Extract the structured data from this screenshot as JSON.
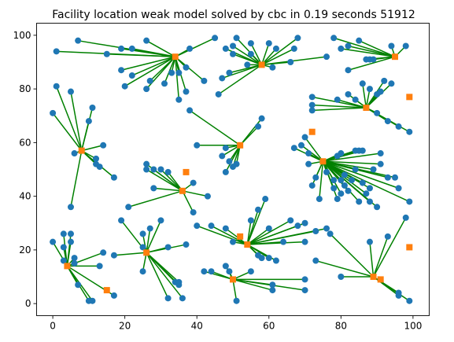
{
  "chart_data": {
    "type": "scatter",
    "title": "Facility location weak model solved by cbc in 0.19 seconds 51912",
    "xlabel": "",
    "ylabel": "",
    "xlim": [
      -4.5,
      104.5
    ],
    "ylim": [
      -4.5,
      104.5
    ],
    "xticks": [
      0,
      20,
      40,
      60,
      80,
      100
    ],
    "yticks": [
      0,
      20,
      40,
      60,
      80,
      100
    ],
    "grid": false,
    "legend": "none",
    "colors": {
      "customers": "#1f77b4",
      "facilities": "#ff7f0e",
      "assignments": "#008000"
    },
    "facilities": [
      {
        "x": 34,
        "y": 92,
        "open": true
      },
      {
        "x": 58,
        "y": 89,
        "open": true
      },
      {
        "x": 95,
        "y": 92,
        "open": true
      },
      {
        "x": 87,
        "y": 73,
        "open": true
      },
      {
        "x": 99,
        "y": 77,
        "open": false
      },
      {
        "x": 8,
        "y": 57,
        "open": true
      },
      {
        "x": 52,
        "y": 59,
        "open": true
      },
      {
        "x": 72,
        "y": 64,
        "open": false
      },
      {
        "x": 75,
        "y": 53,
        "open": true
      },
      {
        "x": 36,
        "y": 42,
        "open": true
      },
      {
        "x": 37,
        "y": 49,
        "open": false
      },
      {
        "x": 26,
        "y": 19,
        "open": true
      },
      {
        "x": 54,
        "y": 22,
        "open": true
      },
      {
        "x": 52,
        "y": 25,
        "open": false
      },
      {
        "x": 4,
        "y": 14,
        "open": true
      },
      {
        "x": 15,
        "y": 5,
        "open": false
      },
      {
        "x": 50,
        "y": 9,
        "open": true
      },
      {
        "x": 89,
        "y": 10,
        "open": true
      },
      {
        "x": 91,
        "y": 9,
        "open": false
      },
      {
        "x": 99,
        "y": 21,
        "open": false
      }
    ],
    "customers": [
      {
        "x": 1,
        "y": 94,
        "f": 0
      },
      {
        "x": 7,
        "y": 98,
        "f": 0
      },
      {
        "x": 15,
        "y": 93,
        "f": 0
      },
      {
        "x": 19,
        "y": 95,
        "f": 0
      },
      {
        "x": 22,
        "y": 95,
        "f": 0
      },
      {
        "x": 26,
        "y": 98,
        "f": 0
      },
      {
        "x": 19,
        "y": 87,
        "f": 0
      },
      {
        "x": 22,
        "y": 85,
        "f": 0
      },
      {
        "x": 20,
        "y": 81,
        "f": 0
      },
      {
        "x": 26,
        "y": 80,
        "f": 0
      },
      {
        "x": 27,
        "y": 83,
        "f": 0
      },
      {
        "x": 31,
        "y": 82,
        "f": 0
      },
      {
        "x": 33,
        "y": 86,
        "f": 0
      },
      {
        "x": 35,
        "y": 86,
        "f": 0
      },
      {
        "x": 37,
        "y": 88,
        "f": 0
      },
      {
        "x": 37,
        "y": 79,
        "f": 0
      },
      {
        "x": 35,
        "y": 76,
        "f": 0
      },
      {
        "x": 38,
        "y": 95,
        "f": 0
      },
      {
        "x": 42,
        "y": 83,
        "f": 0
      },
      {
        "x": 45,
        "y": 99,
        "f": 0
      },
      {
        "x": 48,
        "y": 95,
        "f": 1
      },
      {
        "x": 50,
        "y": 96,
        "f": 1
      },
      {
        "x": 50,
        "y": 93,
        "f": 1
      },
      {
        "x": 51,
        "y": 99,
        "f": 1
      },
      {
        "x": 55,
        "y": 97,
        "f": 1
      },
      {
        "x": 55,
        "y": 93,
        "f": 1
      },
      {
        "x": 54,
        "y": 89,
        "f": 1
      },
      {
        "x": 49,
        "y": 86,
        "f": 1
      },
      {
        "x": 47,
        "y": 84,
        "f": 1
      },
      {
        "x": 46,
        "y": 78,
        "f": 1
      },
      {
        "x": 60,
        "y": 97,
        "f": 1
      },
      {
        "x": 62,
        "y": 95,
        "f": 1
      },
      {
        "x": 67,
        "y": 95,
        "f": 1
      },
      {
        "x": 68,
        "y": 99,
        "f": 1
      },
      {
        "x": 66,
        "y": 90,
        "f": 1
      },
      {
        "x": 61,
        "y": 88,
        "f": 1
      },
      {
        "x": 76,
        "y": 92,
        "f": 1
      },
      {
        "x": 78,
        "y": 99,
        "f": 2
      },
      {
        "x": 80,
        "y": 95,
        "f": 2
      },
      {
        "x": 82,
        "y": 96,
        "f": 2
      },
      {
        "x": 85,
        "y": 98,
        "f": 2
      },
      {
        "x": 87,
        "y": 91,
        "f": 2
      },
      {
        "x": 88,
        "y": 91,
        "f": 2
      },
      {
        "x": 89,
        "y": 91,
        "f": 2
      },
      {
        "x": 94,
        "y": 96,
        "f": 2
      },
      {
        "x": 82,
        "y": 87,
        "f": 2
      },
      {
        "x": 98,
        "y": 96,
        "f": 2
      },
      {
        "x": 72,
        "y": 74,
        "f": 3
      },
      {
        "x": 72,
        "y": 72,
        "f": 3
      },
      {
        "x": 72,
        "y": 77,
        "f": 3
      },
      {
        "x": 79,
        "y": 76,
        "f": 3
      },
      {
        "x": 82,
        "y": 78,
        "f": 3
      },
      {
        "x": 84,
        "y": 76,
        "f": 3
      },
      {
        "x": 86,
        "y": 82,
        "f": 3
      },
      {
        "x": 88,
        "y": 80,
        "f": 3
      },
      {
        "x": 90,
        "y": 78,
        "f": 3
      },
      {
        "x": 91,
        "y": 79,
        "f": 3
      },
      {
        "x": 92,
        "y": 83,
        "f": 3
      },
      {
        "x": 94,
        "y": 82,
        "f": 3
      },
      {
        "x": 90,
        "y": 71,
        "f": 3
      },
      {
        "x": 93,
        "y": 68,
        "f": 3
      },
      {
        "x": 96,
        "y": 66,
        "f": 3
      },
      {
        "x": 99,
        "y": 64,
        "f": 3
      },
      {
        "x": 1,
        "y": 81,
        "f": 5
      },
      {
        "x": 0,
        "y": 71,
        "f": 5
      },
      {
        "x": 5,
        "y": 79,
        "f": 5
      },
      {
        "x": 10,
        "y": 68,
        "f": 5
      },
      {
        "x": 11,
        "y": 73,
        "f": 5
      },
      {
        "x": 6,
        "y": 56,
        "f": 5
      },
      {
        "x": 14,
        "y": 59,
        "f": 5
      },
      {
        "x": 12,
        "y": 52,
        "f": 5
      },
      {
        "x": 12,
        "y": 54,
        "f": 5
      },
      {
        "x": 13,
        "y": 51,
        "f": 5
      },
      {
        "x": 17,
        "y": 47,
        "f": 5
      },
      {
        "x": 5,
        "y": 36,
        "f": 5
      },
      {
        "x": 38,
        "y": 72,
        "f": 6
      },
      {
        "x": 40,
        "y": 59,
        "f": 6
      },
      {
        "x": 47,
        "y": 55,
        "f": 6
      },
      {
        "x": 48,
        "y": 58,
        "f": 6
      },
      {
        "x": 49,
        "y": 53,
        "f": 6
      },
      {
        "x": 48,
        "y": 49,
        "f": 6
      },
      {
        "x": 50,
        "y": 51,
        "f": 6
      },
      {
        "x": 51,
        "y": 52,
        "f": 6
      },
      {
        "x": 57,
        "y": 66,
        "f": 6
      },
      {
        "x": 58,
        "y": 69,
        "f": 6
      },
      {
        "x": 67,
        "y": 58,
        "f": 8
      },
      {
        "x": 69,
        "y": 59,
        "f": 8
      },
      {
        "x": 71,
        "y": 56,
        "f": 8
      },
      {
        "x": 70,
        "y": 62,
        "f": 8
      },
      {
        "x": 71,
        "y": 52,
        "f": 8
      },
      {
        "x": 72,
        "y": 44,
        "f": 8
      },
      {
        "x": 73,
        "y": 47,
        "f": 8
      },
      {
        "x": 74,
        "y": 39,
        "f": 8
      },
      {
        "x": 76,
        "y": 49,
        "f": 8
      },
      {
        "x": 78,
        "y": 46,
        "f": 8
      },
      {
        "x": 78,
        "y": 43,
        "f": 8
      },
      {
        "x": 79,
        "y": 39,
        "f": 8
      },
      {
        "x": 80,
        "y": 41,
        "f": 8
      },
      {
        "x": 80,
        "y": 46,
        "f": 8
      },
      {
        "x": 81,
        "y": 44,
        "f": 8
      },
      {
        "x": 81,
        "y": 48,
        "f": 8
      },
      {
        "x": 82,
        "y": 42,
        "f": 8
      },
      {
        "x": 83,
        "y": 46,
        "f": 8
      },
      {
        "x": 84,
        "y": 50,
        "f": 8
      },
      {
        "x": 85,
        "y": 38,
        "f": 8
      },
      {
        "x": 86,
        "y": 45,
        "f": 8
      },
      {
        "x": 87,
        "y": 41,
        "f": 8
      },
      {
        "x": 88,
        "y": 43,
        "f": 8
      },
      {
        "x": 88,
        "y": 38,
        "f": 8
      },
      {
        "x": 89,
        "y": 50,
        "f": 8
      },
      {
        "x": 90,
        "y": 36,
        "f": 8
      },
      {
        "x": 91,
        "y": 52,
        "f": 8
      },
      {
        "x": 93,
        "y": 47,
        "f": 8
      },
      {
        "x": 96,
        "y": 43,
        "f": 8
      },
      {
        "x": 95,
        "y": 47,
        "f": 8
      },
      {
        "x": 91,
        "y": 56,
        "f": 8
      },
      {
        "x": 84,
        "y": 57,
        "f": 8
      },
      {
        "x": 85,
        "y": 57,
        "f": 8
      },
      {
        "x": 86,
        "y": 57,
        "f": 8
      },
      {
        "x": 80,
        "y": 56,
        "f": 8
      },
      {
        "x": 79,
        "y": 55,
        "f": 8
      },
      {
        "x": 99,
        "y": 38,
        "f": 8
      },
      {
        "x": 26,
        "y": 52,
        "f": 9
      },
      {
        "x": 26,
        "y": 50,
        "f": 9
      },
      {
        "x": 28,
        "y": 50,
        "f": 9
      },
      {
        "x": 30,
        "y": 50,
        "f": 9
      },
      {
        "x": 32,
        "y": 49,
        "f": 9
      },
      {
        "x": 28,
        "y": 43,
        "f": 9
      },
      {
        "x": 21,
        "y": 36,
        "f": 9
      },
      {
        "x": 39,
        "y": 45,
        "f": 9
      },
      {
        "x": 43,
        "y": 40,
        "f": 9
      },
      {
        "x": 39,
        "y": 34,
        "f": 9
      },
      {
        "x": 19,
        "y": 31,
        "f": 11
      },
      {
        "x": 17,
        "y": 18,
        "f": 11
      },
      {
        "x": 25,
        "y": 26,
        "f": 11
      },
      {
        "x": 25,
        "y": 21,
        "f": 11
      },
      {
        "x": 27,
        "y": 28,
        "f": 11
      },
      {
        "x": 30,
        "y": 31,
        "f": 11
      },
      {
        "x": 32,
        "y": 21,
        "f": 11
      },
      {
        "x": 37,
        "y": 22,
        "f": 11
      },
      {
        "x": 25,
        "y": 12,
        "f": 11
      },
      {
        "x": 34,
        "y": 8,
        "f": 11
      },
      {
        "x": 35,
        "y": 7,
        "f": 11
      },
      {
        "x": 35,
        "y": 8,
        "f": 11
      },
      {
        "x": 32,
        "y": 2,
        "f": 11
      },
      {
        "x": 36,
        "y": 2,
        "f": 11
      },
      {
        "x": 40,
        "y": 29,
        "f": 12
      },
      {
        "x": 44,
        "y": 29,
        "f": 12
      },
      {
        "x": 48,
        "y": 28,
        "f": 12
      },
      {
        "x": 50,
        "y": 23,
        "f": 12
      },
      {
        "x": 55,
        "y": 31,
        "f": 12
      },
      {
        "x": 57,
        "y": 35,
        "f": 12
      },
      {
        "x": 59,
        "y": 39,
        "f": 12
      },
      {
        "x": 60,
        "y": 28,
        "f": 12
      },
      {
        "x": 66,
        "y": 31,
        "f": 12
      },
      {
        "x": 68,
        "y": 29,
        "f": 12
      },
      {
        "x": 70,
        "y": 30,
        "f": 12
      },
      {
        "x": 73,
        "y": 27,
        "f": 12
      },
      {
        "x": 76,
        "y": 28,
        "f": 12
      },
      {
        "x": 70,
        "y": 23,
        "f": 12
      },
      {
        "x": 64,
        "y": 23,
        "f": 12
      },
      {
        "x": 57,
        "y": 18,
        "f": 12
      },
      {
        "x": 58,
        "y": 17,
        "f": 12
      },
      {
        "x": 60,
        "y": 17,
        "f": 12
      },
      {
        "x": 62,
        "y": 16,
        "f": 12
      },
      {
        "x": 0,
        "y": 23,
        "f": 14
      },
      {
        "x": 3,
        "y": 26,
        "f": 14
      },
      {
        "x": 5,
        "y": 26,
        "f": 14
      },
      {
        "x": 5,
        "y": 23,
        "f": 14
      },
      {
        "x": 3,
        "y": 21,
        "f": 14
      },
      {
        "x": 3,
        "y": 16,
        "f": 14
      },
      {
        "x": 6,
        "y": 17,
        "f": 14
      },
      {
        "x": 6,
        "y": 15,
        "f": 14
      },
      {
        "x": 7,
        "y": 7,
        "f": 14
      },
      {
        "x": 10,
        "y": 1,
        "f": 14
      },
      {
        "x": 11,
        "y": 1,
        "f": 14
      },
      {
        "x": 14,
        "y": 19,
        "f": 14
      },
      {
        "x": 13,
        "y": 14,
        "f": 14
      },
      {
        "x": 17,
        "y": 3,
        "f": 14
      },
      {
        "x": 42,
        "y": 12,
        "f": 16
      },
      {
        "x": 44,
        "y": 12,
        "f": 16
      },
      {
        "x": 48,
        "y": 14,
        "f": 16
      },
      {
        "x": 49,
        "y": 12,
        "f": 16
      },
      {
        "x": 51,
        "y": 1,
        "f": 16
      },
      {
        "x": 55,
        "y": 12,
        "f": 16
      },
      {
        "x": 61,
        "y": 7,
        "f": 16
      },
      {
        "x": 61,
        "y": 5,
        "f": 16
      },
      {
        "x": 70,
        "y": 5,
        "f": 16
      },
      {
        "x": 70,
        "y": 9,
        "f": 16
      },
      {
        "x": 77,
        "y": 26,
        "f": 17
      },
      {
        "x": 73,
        "y": 16,
        "f": 17
      },
      {
        "x": 80,
        "y": 10,
        "f": 17
      },
      {
        "x": 88,
        "y": 23,
        "f": 17
      },
      {
        "x": 93,
        "y": 25,
        "f": 17
      },
      {
        "x": 98,
        "y": 32,
        "f": 17
      },
      {
        "x": 96,
        "y": 4,
        "f": 17
      },
      {
        "x": 96,
        "y": 3,
        "f": 17
      },
      {
        "x": 99,
        "y": 1,
        "f": 17
      }
    ]
  }
}
